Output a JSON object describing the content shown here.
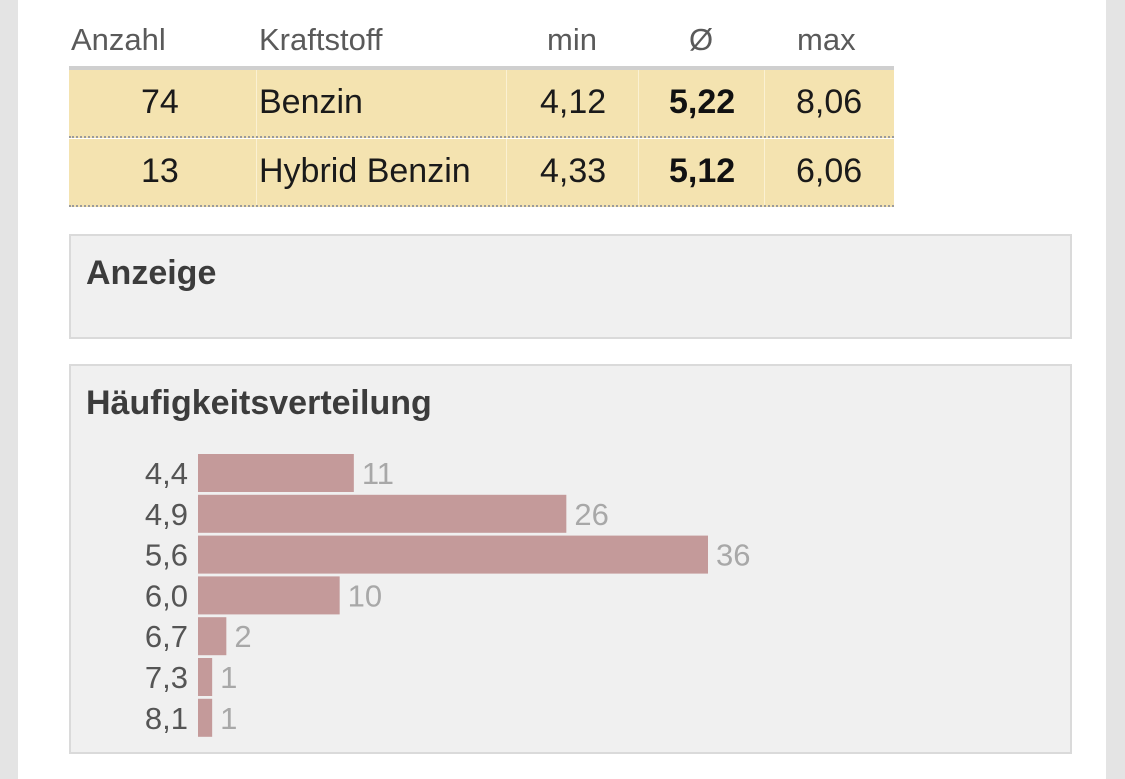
{
  "table": {
    "headers": {
      "count": "Anzahl",
      "fuel": "Kraftstoff",
      "min": "min",
      "avg": "Ø",
      "max": "max"
    },
    "rows": [
      {
        "count": "74",
        "fuel": "Benzin",
        "min": "4,12",
        "avg": "5,22",
        "max": "8,06"
      },
      {
        "count": "13",
        "fuel": "Hybrid Benzin",
        "min": "4,33",
        "avg": "5,12",
        "max": "6,06"
      }
    ]
  },
  "anzeige": {
    "title": "Anzeige"
  },
  "distribution": {
    "title": "Häufigkeitsverteilung"
  },
  "colors": {
    "row_bg": "#f4e3b0",
    "bar": "#c49a9a",
    "count_label": "#a8a8a8",
    "panel_bg": "#f0f0f0"
  },
  "chart_data": {
    "type": "bar",
    "orientation": "horizontal",
    "categories": [
      "4,4",
      "4,9",
      "5,6",
      "6,0",
      "6,7",
      "7,3",
      "8,1"
    ],
    "values": [
      11,
      26,
      36,
      10,
      2,
      1,
      1
    ],
    "value_labels": [
      "11",
      "26",
      "36",
      "10",
      "2",
      "1",
      "1"
    ],
    "xlim": [
      0,
      36
    ],
    "grid": false,
    "legend": "none"
  }
}
